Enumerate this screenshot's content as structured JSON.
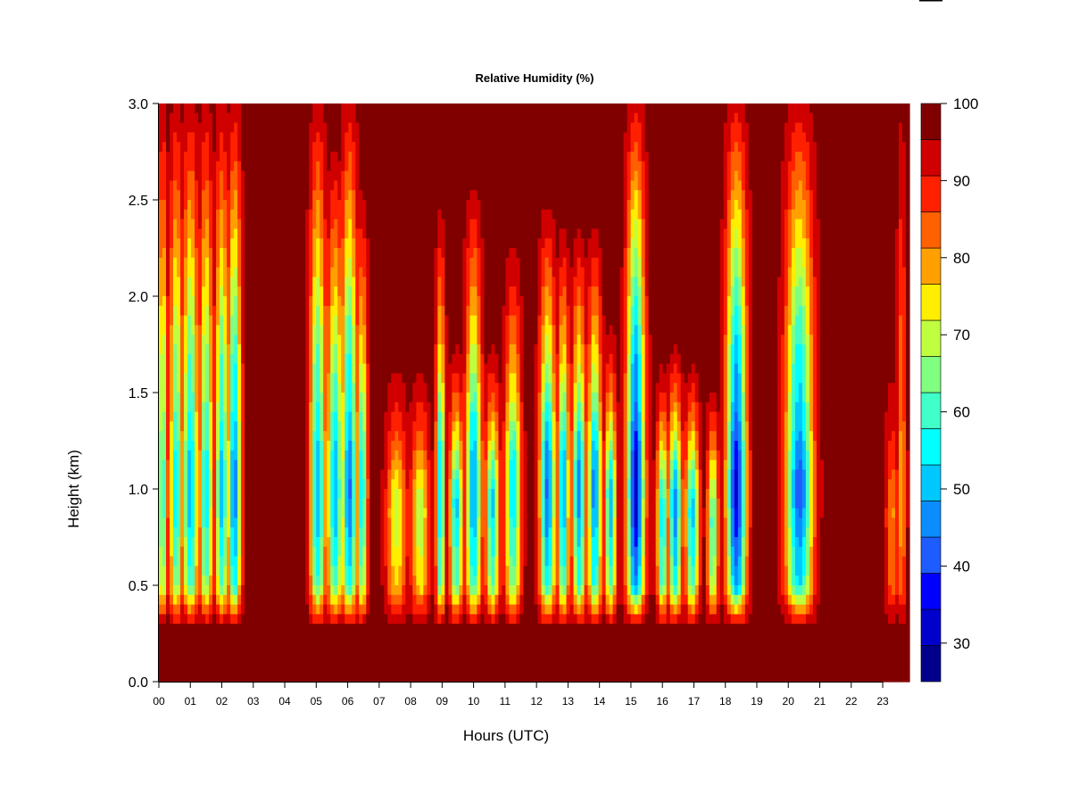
{
  "chart_data": {
    "type": "heatmap",
    "title": "Relative Humidity (%)",
    "xlabel": "Hours (UTC)",
    "ylabel": "Height (km)",
    "x_ticks": [
      "00",
      "01",
      "02",
      "03",
      "04",
      "05",
      "06",
      "07",
      "08",
      "09",
      "10",
      "11",
      "12",
      "13",
      "14",
      "15",
      "16",
      "17",
      "18",
      "19",
      "20",
      "21",
      "22",
      "23"
    ],
    "x_range": [
      0,
      23.85
    ],
    "y_ticks": [
      "0.0",
      "0.5",
      "1.0",
      "1.5",
      "2.0",
      "2.5",
      "3.0"
    ],
    "y_range": [
      0.0,
      3.0
    ],
    "colorbar": {
      "levels": [
        25,
        30,
        35,
        40,
        45,
        50,
        55,
        60,
        65,
        70,
        75,
        80,
        85,
        90,
        95,
        100
      ],
      "colors": [
        "#00008b",
        "#0000cd",
        "#0000ff",
        "#1e5cff",
        "#0b8cff",
        "#00c8ff",
        "#00ffff",
        "#40ffc8",
        "#80ff80",
        "#c0ff40",
        "#ffee00",
        "#ffa000",
        "#ff6000",
        "#ff2000",
        "#d00000",
        "#800000"
      ],
      "tick_labels": [
        "30",
        "40",
        "50",
        "60",
        "70",
        "80",
        "90",
        "100"
      ]
    },
    "dry_columns": [
      {
        "center": 0.12,
        "width": 0.22,
        "min_rh": 58,
        "top": 3.0
      },
      {
        "center": 0.55,
        "width": 0.3,
        "min_rh": 55,
        "top": 3.0
      },
      {
        "center": 1.0,
        "width": 0.35,
        "min_rh": 50,
        "top": 3.0
      },
      {
        "center": 1.5,
        "width": 0.3,
        "min_rh": 55,
        "top": 3.0
      },
      {
        "center": 2.0,
        "width": 0.3,
        "min_rh": 52,
        "top": 3.0
      },
      {
        "center": 2.4,
        "width": 0.3,
        "min_rh": 45,
        "top": 3.0
      },
      {
        "center": 5.05,
        "width": 0.35,
        "min_rh": 50,
        "top": 3.0
      },
      {
        "center": 5.6,
        "width": 0.35,
        "min_rh": 50,
        "top": 2.7
      },
      {
        "center": 6.05,
        "width": 0.35,
        "min_rh": 44,
        "top": 3.0
      },
      {
        "center": 6.45,
        "width": 0.25,
        "min_rh": 55,
        "top": 2.5
      },
      {
        "center": 7.55,
        "width": 0.45,
        "min_rh": 70,
        "top": 1.6
      },
      {
        "center": 8.3,
        "width": 0.4,
        "min_rh": 68,
        "top": 1.6
      },
      {
        "center": 8.95,
        "width": 0.2,
        "min_rh": 52,
        "top": 2.4
      },
      {
        "center": 9.45,
        "width": 0.3,
        "min_rh": 52,
        "top": 1.7
      },
      {
        "center": 10.0,
        "width": 0.35,
        "min_rh": 48,
        "top": 2.5
      },
      {
        "center": 10.6,
        "width": 0.3,
        "min_rh": 52,
        "top": 1.7
      },
      {
        "center": 11.25,
        "width": 0.35,
        "min_rh": 55,
        "top": 2.2
      },
      {
        "center": 12.35,
        "width": 0.35,
        "min_rh": 44,
        "top": 2.4
      },
      {
        "center": 12.85,
        "width": 0.25,
        "min_rh": 48,
        "top": 2.3
      },
      {
        "center": 13.35,
        "width": 0.3,
        "min_rh": 48,
        "top": 2.3
      },
      {
        "center": 13.85,
        "width": 0.3,
        "min_rh": 46,
        "top": 2.3
      },
      {
        "center": 14.35,
        "width": 0.25,
        "min_rh": 50,
        "top": 1.8
      },
      {
        "center": 15.15,
        "width": 0.4,
        "min_rh": 32,
        "top": 3.0
      },
      {
        "center": 16.0,
        "width": 0.25,
        "min_rh": 52,
        "top": 1.6
      },
      {
        "center": 16.4,
        "width": 0.3,
        "min_rh": 45,
        "top": 1.7
      },
      {
        "center": 16.95,
        "width": 0.3,
        "min_rh": 50,
        "top": 1.6
      },
      {
        "center": 17.6,
        "width": 0.25,
        "min_rh": 58,
        "top": 1.5
      },
      {
        "center": 18.35,
        "width": 0.45,
        "min_rh": 34,
        "top": 3.0
      },
      {
        "center": 20.35,
        "width": 0.6,
        "min_rh": 42,
        "top": 3.0
      },
      {
        "center": 23.3,
        "width": 0.3,
        "min_rh": 82,
        "top": 1.6
      },
      {
        "center": 23.6,
        "width": 0.2,
        "min_rh": 80,
        "top": 3.0
      }
    ]
  }
}
